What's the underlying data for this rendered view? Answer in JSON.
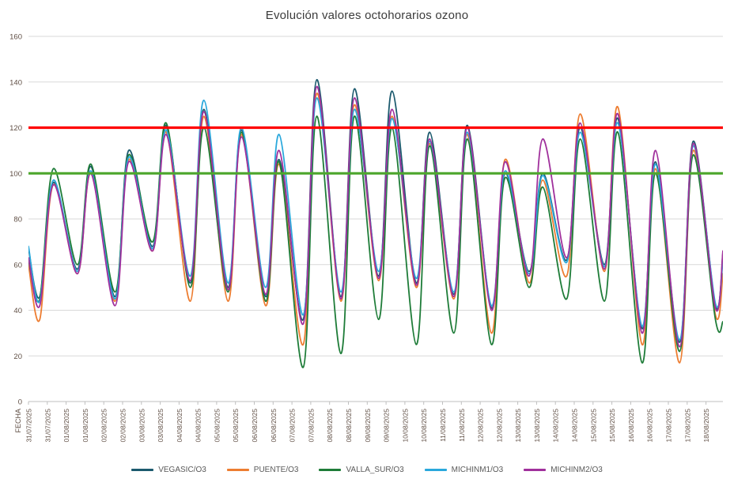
{
  "chart_data": {
    "type": "line",
    "title": "Evolución valores octohorarios ozono",
    "xlabel": "FECHA",
    "ylabel": "",
    "ylim": [
      0,
      160
    ],
    "yticks": [
      0,
      20,
      40,
      60,
      80,
      100,
      120,
      140,
      160
    ],
    "x_unit_days_from": "31/07/2025",
    "x_max": 18.45,
    "x_tick_interval_days": 0.5,
    "x_tick_labels": [
      "31/07/2025",
      "31/07/2025",
      "01/08/2025",
      "01/08/2025",
      "02/08/2025",
      "02/08/2025",
      "03/08/2025",
      "03/08/2025",
      "04/08/2025",
      "04/08/2025",
      "05/08/2025",
      "05/08/2025",
      "06/08/2025",
      "06/08/2025",
      "07/08/2025",
      "07/08/2025",
      "08/08/2025",
      "08/08/2025",
      "09/08/2025",
      "09/08/2025",
      "10/08/2025",
      "10/08/2025",
      "11/08/2025",
      "11/08/2025",
      "12/08/2025",
      "12/08/2025",
      "13/08/2025",
      "13/08/2025",
      "14/08/2025",
      "14/08/2025",
      "15/08/2025",
      "15/08/2025",
      "16/08/2025",
      "16/08/2025",
      "17/08/2025",
      "17/08/2025",
      "18/08/2025"
    ],
    "x": [
      0,
      0.3,
      0.66,
      1.3,
      1.66,
      2.3,
      2.66,
      3.3,
      3.66,
      4.3,
      4.66,
      5.3,
      5.66,
      6.3,
      6.66,
      7.3,
      7.66,
      8.3,
      8.66,
      9.3,
      9.66,
      10.3,
      10.66,
      11.3,
      11.66,
      12.3,
      12.66,
      13.3,
      13.66,
      14.3,
      14.66,
      15.3,
      15.66,
      16.3,
      16.66,
      17.3,
      17.66,
      18.25,
      18.45
    ],
    "series": [
      {
        "name": "VEGASIC/O3",
        "color": "#1c5a6e",
        "values": [
          67,
          46,
          96,
          58,
          103,
          46,
          110,
          68,
          121,
          52,
          128,
          50,
          119,
          46,
          106,
          36,
          141,
          46,
          137,
          55,
          136,
          52,
          118,
          47,
          121,
          41,
          100,
          57,
          100,
          62,
          120,
          60,
          124,
          32,
          105,
          26,
          114,
          42,
          65
        ]
      },
      {
        "name": "PUENTE/O3",
        "color": "#ed7d31",
        "values": [
          60,
          36,
          95,
          56,
          100,
          44,
          106,
          66,
          118,
          44,
          125,
          44,
          117,
          42,
          104,
          25,
          135,
          44,
          130,
          53,
          125,
          50,
          113,
          45,
          117,
          30,
          106,
          52,
          97,
          55,
          126,
          57,
          129,
          25,
          102,
          17,
          110,
          38,
          56
        ]
      },
      {
        "name": "VALLA_SUR/O3",
        "color": "#1e7c38",
        "values": [
          62,
          45,
          102,
          60,
          104,
          48,
          108,
          70,
          122,
          50,
          120,
          48,
          118,
          44,
          105,
          15,
          125,
          21,
          125,
          36,
          120,
          25,
          112,
          30,
          115,
          25,
          98,
          50,
          94,
          45,
          115,
          44,
          118,
          17,
          100,
          22,
          108,
          36,
          35
        ]
      },
      {
        "name": "MICHINM1/O3",
        "color": "#2aa8dc",
        "values": [
          68,
          44,
          97,
          57,
          101,
          45,
          107,
          67,
          119,
          55,
          132,
          52,
          120,
          50,
          117,
          38,
          133,
          48,
          128,
          57,
          124,
          54,
          114,
          48,
          118,
          42,
          101,
          56,
          99,
          61,
          118,
          59,
          122,
          33,
          104,
          27,
          112,
          43,
          62
        ]
      },
      {
        "name": "MICHINM2/O3",
        "color": "#a0309c",
        "values": [
          63,
          42,
          95,
          56,
          100,
          42,
          105,
          66,
          117,
          53,
          127,
          49,
          116,
          47,
          110,
          34,
          138,
          45,
          133,
          54,
          128,
          51,
          115,
          46,
          120,
          40,
          105,
          55,
          115,
          63,
          122,
          58,
          126,
          30,
          110,
          24,
          113,
          41,
          66
        ]
      }
    ],
    "reference_lines": [
      {
        "label": "120",
        "value": 120,
        "color": "#ff0000"
      },
      {
        "label": "100",
        "value": 100,
        "color": "#4ea72e"
      }
    ],
    "legend_position": "bottom",
    "styles": {
      "grid_color": "#d9d9d9",
      "axis_color": "#bfbfbf",
      "label_color": "#604f45",
      "title_color": "#3b3b3b",
      "legend_text_color": "#595959",
      "background": "#ffffff"
    }
  }
}
